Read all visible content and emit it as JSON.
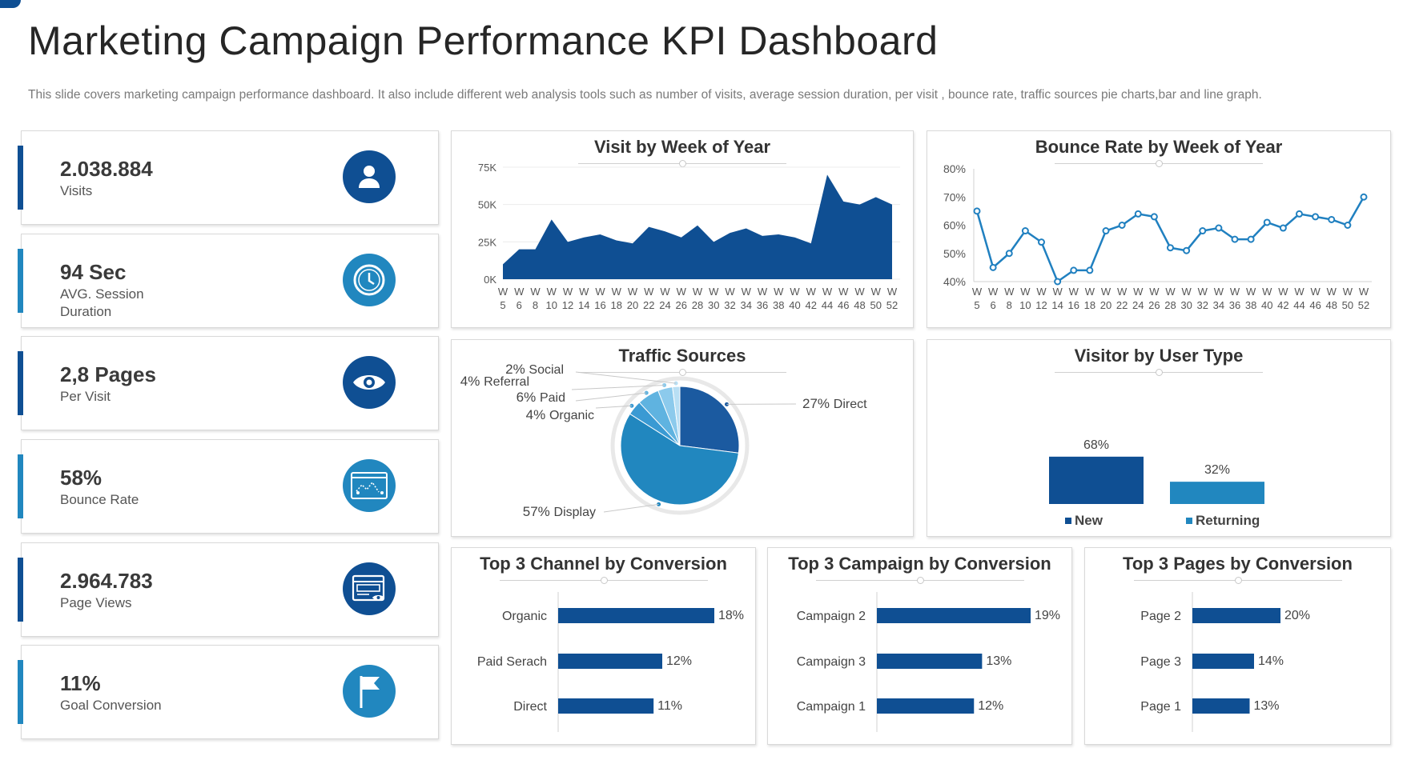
{
  "header": {
    "title": "Marketing Campaign Performance KPI Dashboard",
    "subtitle": "This slide covers marketing campaign performance dashboard. It also include different web analysis tools such as number of visits, average session duration, per visit , bounce rate, traffic sources pie charts,bar and line graph."
  },
  "colors": {
    "dark_blue": "#0f4f93",
    "mid_blue": "#2187bf",
    "light_blue": "#5fb3e0"
  },
  "kpis": [
    {
      "value": "2.038.884",
      "label": "Visits",
      "icon": "user-icon",
      "accent": "#0f4f93",
      "circle": "#0f4f93"
    },
    {
      "value": "94 Sec",
      "label": "AVG. Session Duration",
      "icon": "clock-icon",
      "accent": "#2187bf",
      "circle": "#2187bf"
    },
    {
      "value": "2,8 Pages",
      "label": "Per Visit",
      "icon": "eye-icon",
      "accent": "#0f4f93",
      "circle": "#0f4f93"
    },
    {
      "value": "58%",
      "label": "Bounce Rate",
      "icon": "web-analytics-icon",
      "accent": "#2187bf",
      "circle": "#2187bf"
    },
    {
      "value": "2.964.783",
      "label": "Page Views",
      "icon": "webpage-view-icon",
      "accent": "#0f4f93",
      "circle": "#0f4f93"
    },
    {
      "value": "11%",
      "label": "Goal Conversion",
      "icon": "flag-icon",
      "accent": "#2187bf",
      "circle": "#2187bf"
    }
  ],
  "chart_data": [
    {
      "type": "area",
      "title": "Visit by Week of Year",
      "x": [
        "W 5",
        "W 6",
        "W 8",
        "W 10",
        "W 12",
        "W 14",
        "W 16",
        "W 18",
        "W 20",
        "W 22",
        "W 24",
        "W 26",
        "W 28",
        "W 30",
        "W 32",
        "W 34",
        "W 36",
        "W 38",
        "W 40",
        "W 42",
        "W 44",
        "W 46",
        "W 48",
        "W 50",
        "W 52"
      ],
      "values": [
        10000,
        20000,
        20000,
        40000,
        25000,
        28000,
        30000,
        26000,
        24000,
        35000,
        32000,
        28000,
        36000,
        25000,
        31000,
        34000,
        29000,
        30000,
        28000,
        24000,
        70000,
        52000,
        50000,
        55000,
        50000
      ],
      "yticks": [
        "75K",
        "50K",
        "25K",
        "0K"
      ],
      "ylim": [
        0,
        75000
      ],
      "color": "#0f4f93"
    },
    {
      "type": "line",
      "title": "Bounce Rate by Week of Year",
      "x": [
        "W 5",
        "W 6",
        "W 8",
        "W 10",
        "W 12",
        "W 14",
        "W 16",
        "W 18",
        "W 20",
        "W 22",
        "W 24",
        "W 26",
        "W 28",
        "W 30",
        "W 32",
        "W 34",
        "W 36",
        "W 38",
        "W 40",
        "W 42",
        "W 44",
        "W 46",
        "W 48",
        "W 50",
        "W 52"
      ],
      "values": [
        65,
        45,
        50,
        58,
        54,
        40,
        44,
        44,
        58,
        60,
        64,
        63,
        52,
        51,
        58,
        59,
        55,
        55,
        61,
        59,
        64,
        63,
        62,
        60,
        70
      ],
      "yticks": [
        "80%",
        "70%",
        "60%",
        "50%",
        "40%"
      ],
      "ylim": [
        40,
        80
      ],
      "color": "#2080c0"
    },
    {
      "type": "pie",
      "title": "Traffic Sources",
      "slices": [
        {
          "name": "Direct",
          "pct": "27%",
          "value": 27,
          "color": "#1b5aa0"
        },
        {
          "name": "Display",
          "pct": "57%",
          "value": 57,
          "color": "#2187bf"
        },
        {
          "name": "Organic",
          "pct": "4%",
          "value": 4,
          "color": "#3a9ad3"
        },
        {
          "name": "Paid",
          "pct": "6%",
          "value": 6,
          "color": "#5fb3e0"
        },
        {
          "name": "Referral",
          "pct": "4%",
          "value": 4,
          "color": "#8ccaec"
        },
        {
          "name": "Social",
          "pct": "2%",
          "value": 2,
          "color": "#b8dff4"
        }
      ]
    },
    {
      "type": "bar",
      "title": "Visitor by User Type",
      "categories": [
        "New",
        "Returning"
      ],
      "values": [
        68,
        32
      ],
      "labels": [
        "68%",
        "32%"
      ],
      "colors": [
        "#0f4f93",
        "#2187bf"
      ]
    },
    {
      "type": "bar",
      "title": "Top 3 Channel by Conversion",
      "categories": [
        "Organic",
        "Paid Serach",
        "Direct"
      ],
      "values": [
        18,
        12,
        11
      ],
      "labels": [
        "18%",
        "12%",
        "11%"
      ]
    },
    {
      "type": "bar",
      "title": "Top 3 Campaign by Conversion",
      "categories": [
        "Campaign 2",
        "Campaign 3",
        "Campaign 1"
      ],
      "values": [
        19,
        13,
        12
      ],
      "labels": [
        "19%",
        "13%",
        "12%"
      ]
    },
    {
      "type": "bar",
      "title": "Top 3 Pages by Conversion",
      "categories": [
        "Page 2",
        "Page 3",
        "Page 1"
      ],
      "values": [
        20,
        14,
        13
      ],
      "labels": [
        "20%",
        "14%",
        "13%"
      ]
    }
  ]
}
